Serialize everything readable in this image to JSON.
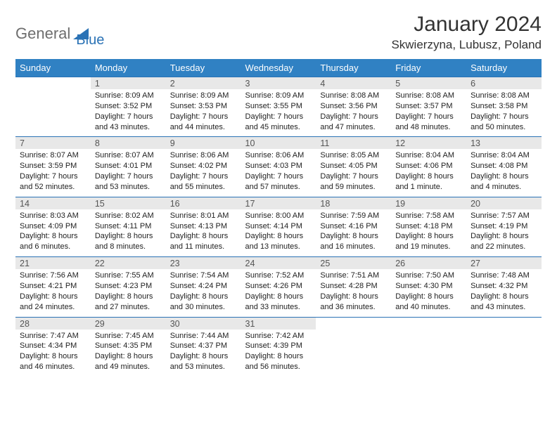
{
  "logo": {
    "text1": "General",
    "text2": "Blue",
    "color1": "#6e6e6e",
    "color2": "#2a72b5"
  },
  "title": "January 2024",
  "location": "Skwierzyna, Lubusz, Poland",
  "header_bg": "#3081c3",
  "header_fg": "#ffffff",
  "border_color": "#2a72b5",
  "daynum_bg": "#e8e8e8",
  "weekdays": [
    "Sunday",
    "Monday",
    "Tuesday",
    "Wednesday",
    "Thursday",
    "Friday",
    "Saturday"
  ],
  "weeks": [
    {
      "nums": [
        "",
        "1",
        "2",
        "3",
        "4",
        "5",
        "6"
      ],
      "cells": [
        {},
        {
          "sunrise": "Sunrise: 8:09 AM",
          "sunset": "Sunset: 3:52 PM",
          "day": "Daylight: 7 hours and 43 minutes."
        },
        {
          "sunrise": "Sunrise: 8:09 AM",
          "sunset": "Sunset: 3:53 PM",
          "day": "Daylight: 7 hours and 44 minutes."
        },
        {
          "sunrise": "Sunrise: 8:09 AM",
          "sunset": "Sunset: 3:55 PM",
          "day": "Daylight: 7 hours and 45 minutes."
        },
        {
          "sunrise": "Sunrise: 8:08 AM",
          "sunset": "Sunset: 3:56 PM",
          "day": "Daylight: 7 hours and 47 minutes."
        },
        {
          "sunrise": "Sunrise: 8:08 AM",
          "sunset": "Sunset: 3:57 PM",
          "day": "Daylight: 7 hours and 48 minutes."
        },
        {
          "sunrise": "Sunrise: 8:08 AM",
          "sunset": "Sunset: 3:58 PM",
          "day": "Daylight: 7 hours and 50 minutes."
        }
      ]
    },
    {
      "nums": [
        "7",
        "8",
        "9",
        "10",
        "11",
        "12",
        "13"
      ],
      "cells": [
        {
          "sunrise": "Sunrise: 8:07 AM",
          "sunset": "Sunset: 3:59 PM",
          "day": "Daylight: 7 hours and 52 minutes."
        },
        {
          "sunrise": "Sunrise: 8:07 AM",
          "sunset": "Sunset: 4:01 PM",
          "day": "Daylight: 7 hours and 53 minutes."
        },
        {
          "sunrise": "Sunrise: 8:06 AM",
          "sunset": "Sunset: 4:02 PM",
          "day": "Daylight: 7 hours and 55 minutes."
        },
        {
          "sunrise": "Sunrise: 8:06 AM",
          "sunset": "Sunset: 4:03 PM",
          "day": "Daylight: 7 hours and 57 minutes."
        },
        {
          "sunrise": "Sunrise: 8:05 AM",
          "sunset": "Sunset: 4:05 PM",
          "day": "Daylight: 7 hours and 59 minutes."
        },
        {
          "sunrise": "Sunrise: 8:04 AM",
          "sunset": "Sunset: 4:06 PM",
          "day": "Daylight: 8 hours and 1 minute."
        },
        {
          "sunrise": "Sunrise: 8:04 AM",
          "sunset": "Sunset: 4:08 PM",
          "day": "Daylight: 8 hours and 4 minutes."
        }
      ]
    },
    {
      "nums": [
        "14",
        "15",
        "16",
        "17",
        "18",
        "19",
        "20"
      ],
      "cells": [
        {
          "sunrise": "Sunrise: 8:03 AM",
          "sunset": "Sunset: 4:09 PM",
          "day": "Daylight: 8 hours and 6 minutes."
        },
        {
          "sunrise": "Sunrise: 8:02 AM",
          "sunset": "Sunset: 4:11 PM",
          "day": "Daylight: 8 hours and 8 minutes."
        },
        {
          "sunrise": "Sunrise: 8:01 AM",
          "sunset": "Sunset: 4:13 PM",
          "day": "Daylight: 8 hours and 11 minutes."
        },
        {
          "sunrise": "Sunrise: 8:00 AM",
          "sunset": "Sunset: 4:14 PM",
          "day": "Daylight: 8 hours and 13 minutes."
        },
        {
          "sunrise": "Sunrise: 7:59 AM",
          "sunset": "Sunset: 4:16 PM",
          "day": "Daylight: 8 hours and 16 minutes."
        },
        {
          "sunrise": "Sunrise: 7:58 AM",
          "sunset": "Sunset: 4:18 PM",
          "day": "Daylight: 8 hours and 19 minutes."
        },
        {
          "sunrise": "Sunrise: 7:57 AM",
          "sunset": "Sunset: 4:19 PM",
          "day": "Daylight: 8 hours and 22 minutes."
        }
      ]
    },
    {
      "nums": [
        "21",
        "22",
        "23",
        "24",
        "25",
        "26",
        "27"
      ],
      "cells": [
        {
          "sunrise": "Sunrise: 7:56 AM",
          "sunset": "Sunset: 4:21 PM",
          "day": "Daylight: 8 hours and 24 minutes."
        },
        {
          "sunrise": "Sunrise: 7:55 AM",
          "sunset": "Sunset: 4:23 PM",
          "day": "Daylight: 8 hours and 27 minutes."
        },
        {
          "sunrise": "Sunrise: 7:54 AM",
          "sunset": "Sunset: 4:24 PM",
          "day": "Daylight: 8 hours and 30 minutes."
        },
        {
          "sunrise": "Sunrise: 7:52 AM",
          "sunset": "Sunset: 4:26 PM",
          "day": "Daylight: 8 hours and 33 minutes."
        },
        {
          "sunrise": "Sunrise: 7:51 AM",
          "sunset": "Sunset: 4:28 PM",
          "day": "Daylight: 8 hours and 36 minutes."
        },
        {
          "sunrise": "Sunrise: 7:50 AM",
          "sunset": "Sunset: 4:30 PM",
          "day": "Daylight: 8 hours and 40 minutes."
        },
        {
          "sunrise": "Sunrise: 7:48 AM",
          "sunset": "Sunset: 4:32 PM",
          "day": "Daylight: 8 hours and 43 minutes."
        }
      ]
    },
    {
      "nums": [
        "28",
        "29",
        "30",
        "31",
        "",
        "",
        ""
      ],
      "cells": [
        {
          "sunrise": "Sunrise: 7:47 AM",
          "sunset": "Sunset: 4:34 PM",
          "day": "Daylight: 8 hours and 46 minutes."
        },
        {
          "sunrise": "Sunrise: 7:45 AM",
          "sunset": "Sunset: 4:35 PM",
          "day": "Daylight: 8 hours and 49 minutes."
        },
        {
          "sunrise": "Sunrise: 7:44 AM",
          "sunset": "Sunset: 4:37 PM",
          "day": "Daylight: 8 hours and 53 minutes."
        },
        {
          "sunrise": "Sunrise: 7:42 AM",
          "sunset": "Sunset: 4:39 PM",
          "day": "Daylight: 8 hours and 56 minutes."
        },
        {},
        {},
        {}
      ]
    }
  ]
}
